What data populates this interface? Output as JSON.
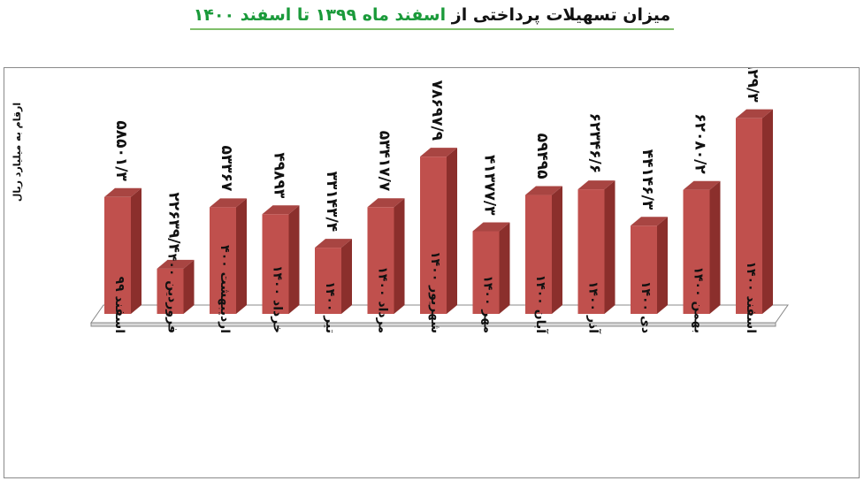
{
  "title": {
    "part1": "میزان تسهیلات پرداختی از ",
    "part2": "اسفند ماه ۱۳۹۹ تا اسفند ۱۴۰۰"
  },
  "colors": {
    "bar_front": "#c0504d",
    "bar_top": "#a84542",
    "bar_side": "#8b2f2c",
    "floor": "#ffffff",
    "floor_stroke": "#888888",
    "title_highlight": "#1a9a3a",
    "title_underline": "#7fbf6a"
  },
  "chart_data": {
    "type": "bar",
    "ylabel": "ارقام به میلیارد ریال",
    "categories": [
      "اسفند ۹۹",
      "فروردین ۴۰۰",
      "اردیبهشت ۴۰۰",
      "خرداد ۱۴۰۰",
      "تیر ۱۴۰۰",
      "مرداد ۱۴۰۰",
      "شهریور ۱۴۰۰",
      "مهر ۱۴۰۰",
      "آبان ۱۴۰۰",
      "آذر ۱۴۰۰",
      "دی ۱۴۰۰",
      "بهمن ۱۴۰۰",
      "اسفند ۱۴۰۰"
    ],
    "values": [
      58501.3,
      22639.4,
      53367,
      49893,
      33143.4,
      53417.7,
      78697.9,
      41377.3,
      59495,
      62346.6,
      44146.3,
      62080.2,
      97929.3
    ],
    "value_labels": [
      "۵۸۵۰۱/۳",
      "۲۲۶۳۹/۴",
      "۵۳۳۶۷",
      "۴۹۸۹۳",
      "۳۳۱۴۳/۴",
      "۵۳۴۱۷/۷",
      "۷۸۶۹۷/۹",
      "۴۱۳۷۷/۳",
      "۵۹۴۹۵",
      "۶۲۳۴۶/۶",
      "۴۴۱۴۶/۳",
      "۶۲۰۸۰/۲",
      "۹۷۹۲۹/۳"
    ],
    "ylim": [
      0,
      100000
    ],
    "grid": false,
    "legend": "none"
  }
}
